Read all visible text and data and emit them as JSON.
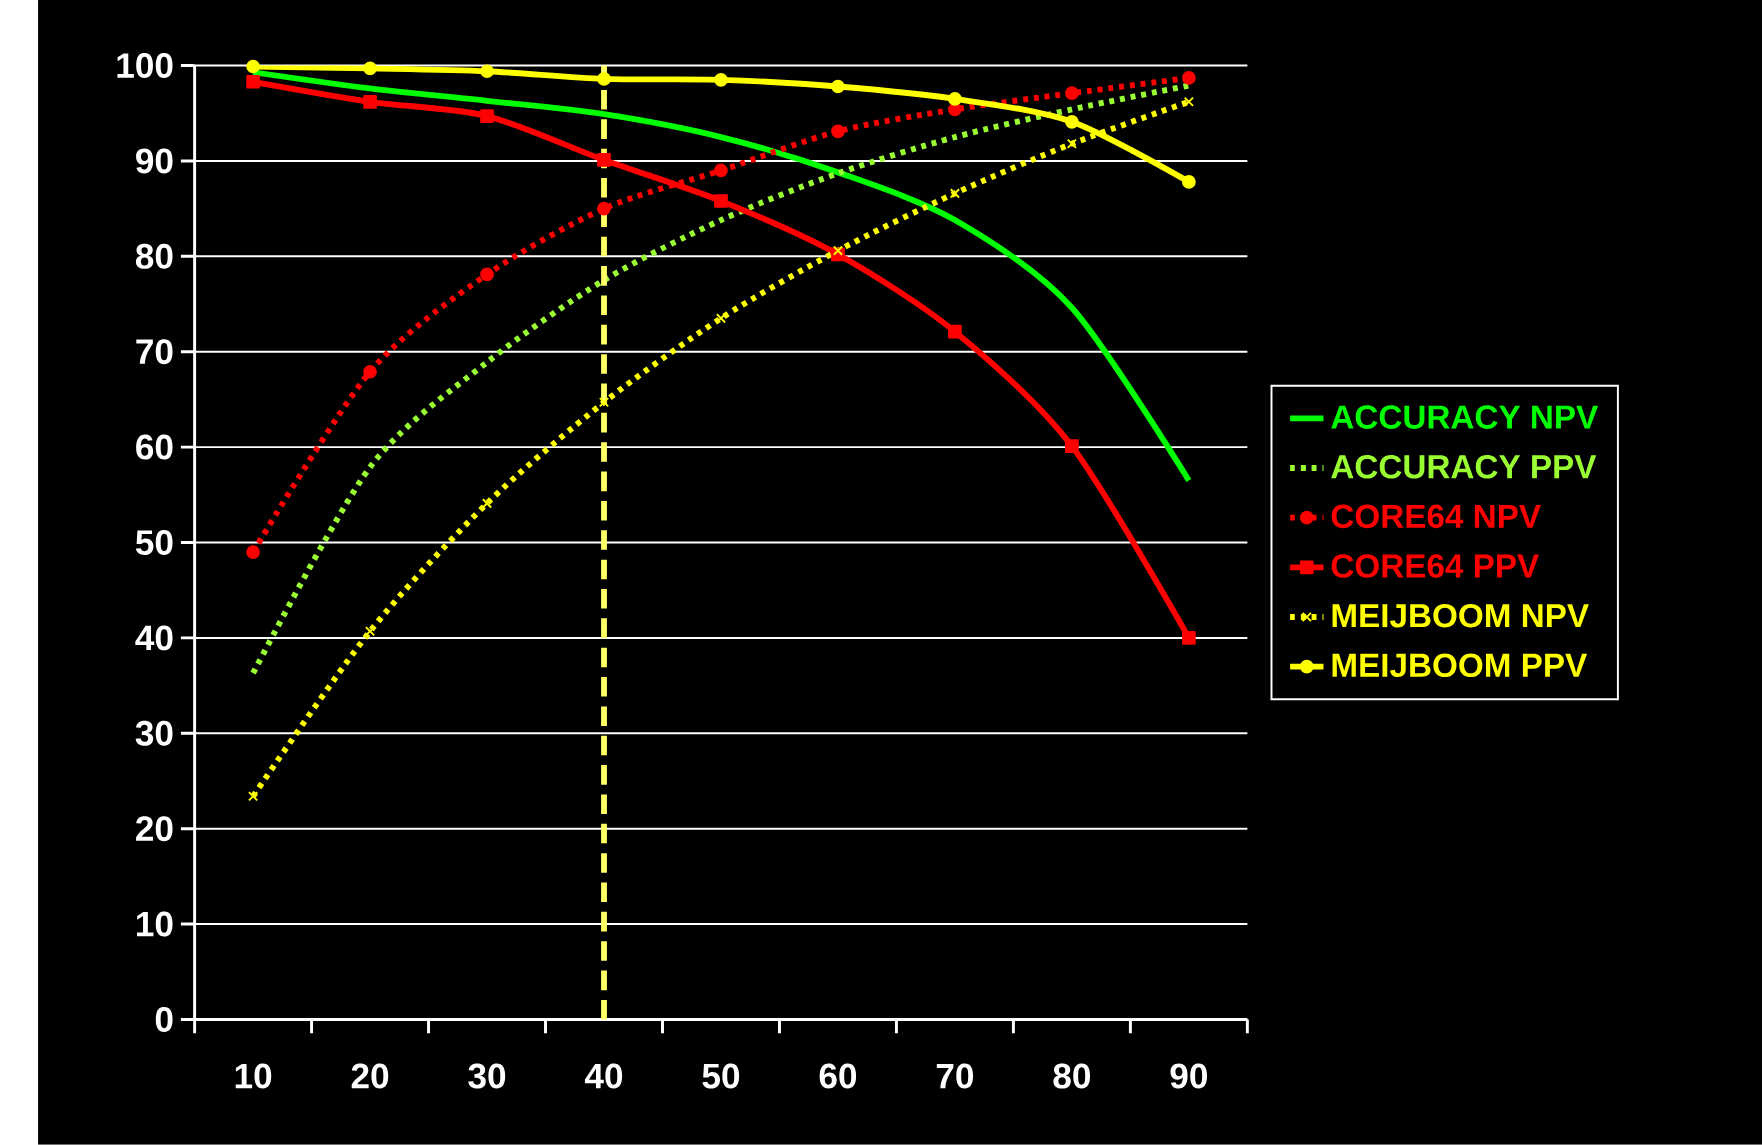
{
  "chart_data": {
    "type": "line",
    "categories": [
      "10",
      "20",
      "30",
      "40",
      "50",
      "60",
      "70",
      "80",
      "90"
    ],
    "ylim": [
      0,
      100
    ],
    "yticks": [
      0,
      10,
      20,
      30,
      40,
      50,
      60,
      70,
      80,
      90,
      100
    ],
    "grid": "y",
    "legend": "right",
    "series": [
      {
        "name": "ACCURACY NPV",
        "color": "#00ff00",
        "line_style": "solid",
        "marker": "none",
        "values": [
          99.3,
          97.6,
          96.3,
          94.9,
          92.5,
          88.8,
          83.8,
          74.6,
          56.5
        ]
      },
      {
        "name": "ACCURACY PPV",
        "color": "#99ff33",
        "line_style": "dotted",
        "marker": "none",
        "values": [
          36.3,
          57.9,
          68.9,
          77.5,
          83.8,
          88.7,
          92.5,
          95.4,
          97.9
        ]
      },
      {
        "name": "CORE64 NPV",
        "color": "#ff0000",
        "line_style": "dotted",
        "marker": "circle",
        "values": [
          49.0,
          67.9,
          78.1,
          85.0,
          89.0,
          93.1,
          95.4,
          97.1,
          98.7
        ]
      },
      {
        "name": "CORE64 PPV",
        "color": "#ff0000",
        "line_style": "solid",
        "marker": "square",
        "values": [
          98.3,
          96.2,
          94.7,
          90.1,
          85.8,
          80.2,
          72.1,
          60.1,
          40.0
        ]
      },
      {
        "name": "MEIJBOOM NPV",
        "color": "#ffff00",
        "line_style": "dotted",
        "marker": "cross",
        "values": [
          23.4,
          40.7,
          54.1,
          64.7,
          73.5,
          80.6,
          86.6,
          91.8,
          96.2
        ]
      },
      {
        "name": "MEIJBOOM PPV",
        "color": "#ffff00",
        "line_style": "solid",
        "marker": "circle",
        "values": [
          99.9,
          99.7,
          99.4,
          98.6,
          98.5,
          97.8,
          96.5,
          94.1,
          87.8
        ]
      }
    ],
    "ref_lines": [
      {
        "axis": "x",
        "value": "40",
        "color": "#ffff66",
        "line_style": "dashed"
      }
    ]
  }
}
